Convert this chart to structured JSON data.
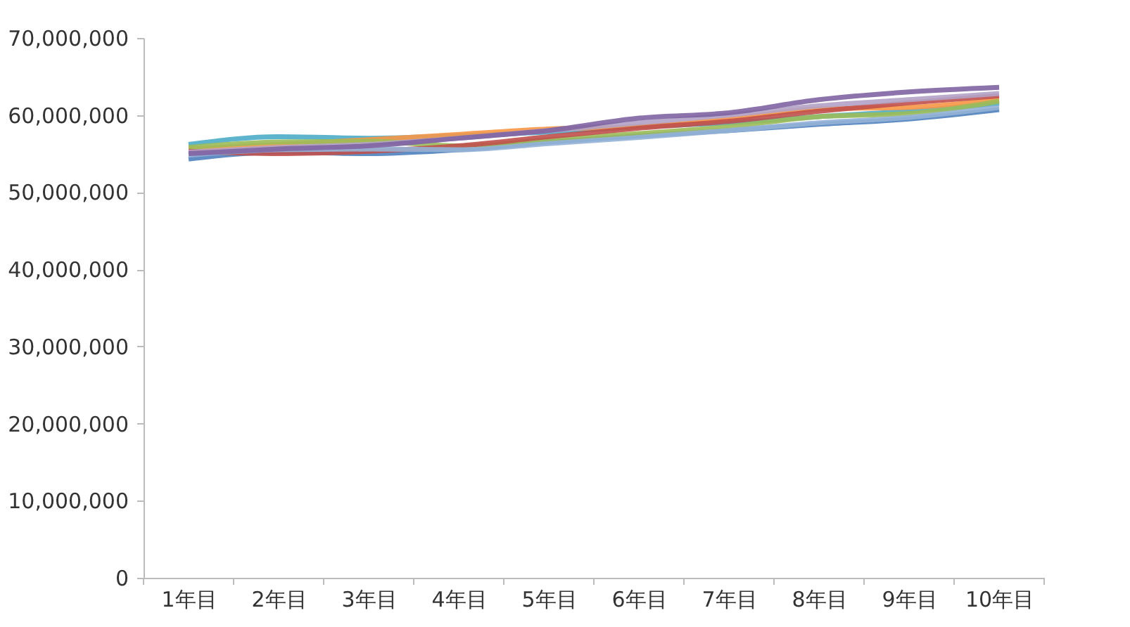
{
  "chart_data": {
    "type": "line",
    "categories": [
      "1年目",
      "2年目",
      "3年目",
      "4年目",
      "5年目",
      "6年目",
      "7年目",
      "8年目",
      "9年目",
      "10年目"
    ],
    "series": [
      {
        "color": "#4f81bd",
        "values": [
          54300000,
          55200000,
          55000000,
          55500000,
          56500000,
          57300000,
          58000000,
          58800000,
          59500000,
          60700000
        ]
      },
      {
        "color": "#4bacc6",
        "values": [
          56200000,
          57200000,
          57000000,
          57300000,
          57800000,
          58500000,
          59000000,
          59800000,
          60500000,
          61500000
        ]
      },
      {
        "color": "#f79646",
        "values": [
          55600000,
          56200000,
          56800000,
          57500000,
          58200000,
          58500000,
          59500000,
          60800000,
          61000000,
          62000000
        ]
      },
      {
        "color": "#9bbb59",
        "values": [
          55800000,
          56500000,
          56600000,
          56000000,
          56800000,
          57600000,
          58500000,
          59800000,
          60200000,
          61800000
        ]
      },
      {
        "color": "#c0504d",
        "values": [
          55300000,
          55000000,
          55300000,
          56000000,
          57200000,
          58300000,
          59200000,
          60500000,
          61600000,
          62500000
        ]
      },
      {
        "color": "#95b3d7",
        "values": [
          54800000,
          55500000,
          55600000,
          55500000,
          56300000,
          57100000,
          58000000,
          59000000,
          59700000,
          61000000
        ]
      },
      {
        "color": "#b3a2c7",
        "values": [
          55200000,
          55800000,
          56200000,
          57000000,
          58000000,
          59000000,
          60000000,
          61200000,
          62000000,
          62800000
        ]
      },
      {
        "color": "#8064a2",
        "values": [
          55000000,
          55600000,
          56000000,
          57000000,
          58000000,
          59600000,
          60300000,
          62000000,
          63000000,
          63600000
        ]
      }
    ],
    "ylim": [
      0,
      70000000
    ],
    "yticks": [
      0,
      {
        "value": 10000000,
        "label": "10,000,000"
      },
      {
        "value": 20000000,
        "label": "20,000,000"
      },
      {
        "value": 30000000,
        "label": "30,000,000"
      },
      {
        "value": 40000000,
        "label": "40,000,000"
      },
      {
        "value": 50000000,
        "label": "50,000,000"
      },
      {
        "value": 60000000,
        "label": "60,000,000"
      },
      {
        "value": 70000000,
        "label": "70,000,000"
      }
    ],
    "grid": false,
    "marker": "none",
    "line_style": "solid"
  }
}
